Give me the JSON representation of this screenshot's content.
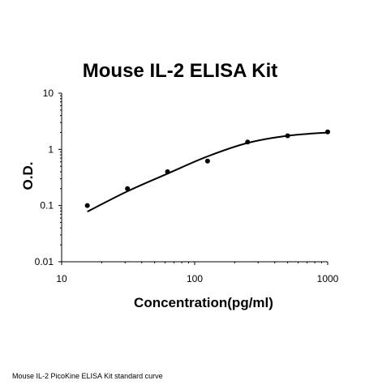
{
  "chart_data": {
    "type": "scatter",
    "title": "Mouse IL-2 ELISA Kit",
    "xlabel": "Concentration(pg/ml)",
    "ylabel": "O.D.",
    "x_scale": "log",
    "y_scale": "log",
    "xlim": [
      10,
      1000
    ],
    "ylim": [
      0.01,
      10
    ],
    "x_ticks": [
      "10",
      "100",
      "1000"
    ],
    "y_ticks": [
      "0.01",
      "0.1",
      "1",
      "10"
    ],
    "grid": false,
    "legend": false,
    "series": [
      {
        "type": "scatter",
        "x": [
          15.6,
          31.25,
          62.5,
          125,
          250,
          500,
          1000
        ],
        "y": [
          0.1,
          0.2,
          0.4,
          0.62,
          1.35,
          1.75,
          2.05
        ]
      },
      {
        "type": "line",
        "x": [
          15.6,
          31.25,
          62.5,
          125,
          250,
          500,
          1000
        ],
        "y": [
          0.078,
          0.18,
          0.37,
          0.75,
          1.3,
          1.75,
          2.0
        ]
      }
    ]
  },
  "caption": "Mouse IL-2 PicoKine ELISA Kit standard curve"
}
